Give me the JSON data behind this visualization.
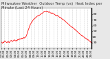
{
  "title": "Milwaukee Weather  Outdoor Temp (vs)  Heat Index per Minute (Last 24 Hours)",
  "title_fontsize": 3.8,
  "bg_color": "#e8e8e8",
  "plot_bg_color": "#ffffff",
  "line_color": "#ff0000",
  "line_width": 0.55,
  "y_values": [
    32,
    30,
    29,
    31,
    30,
    32,
    33,
    32,
    31,
    30,
    31,
    32,
    31,
    30,
    32,
    33,
    34,
    33,
    32,
    33,
    34,
    35,
    34,
    33,
    34,
    33,
    35,
    36,
    35,
    36,
    37,
    36,
    37,
    38,
    37,
    38,
    39,
    38,
    39,
    40,
    42,
    45,
    48,
    52,
    55,
    58,
    61,
    63,
    65,
    67,
    68,
    70,
    71,
    72,
    73,
    74,
    75,
    76,
    77,
    77,
    78,
    78,
    79,
    80,
    81,
    81,
    82,
    83,
    84,
    85,
    85,
    85,
    84,
    85,
    84,
    83,
    84,
    83,
    82,
    82,
    81,
    82,
    81,
    80,
    80,
    79,
    78,
    77,
    77,
    78,
    77,
    76,
    75,
    74,
    74,
    73,
    72,
    71,
    70,
    70,
    69,
    68,
    67,
    66,
    65,
    64,
    63,
    62,
    61,
    60,
    59,
    58,
    57,
    57,
    56,
    55,
    54,
    53,
    52,
    51,
    50,
    49,
    48,
    47,
    46,
    45,
    44,
    43,
    42,
    42,
    41,
    40,
    39,
    38,
    38,
    37,
    36,
    35,
    35,
    34,
    33,
    32,
    31,
    30
  ],
  "ylim": [
    20,
    90
  ],
  "yticks": [
    30,
    40,
    50,
    60,
    70,
    80
  ],
  "ytick_labels": [
    "30",
    "40",
    "50",
    "60",
    "70",
    "80"
  ],
  "ytick_fontsize": 3.2,
  "xtick_fontsize": 2.8,
  "grid_color": "#aaaaaa",
  "grid_style": "dotted",
  "num_xticks": 25
}
